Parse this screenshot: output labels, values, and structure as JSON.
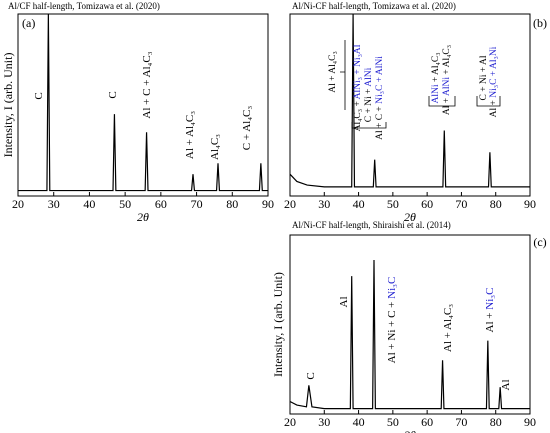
{
  "chart_data": [
    {
      "type": "line",
      "title": "Al/CF half-length,  Tomizawa et al. (2020)",
      "panel": "(a)",
      "xlabel": "2θ",
      "ylabel": "Intensity, I (arb. Unit)",
      "color": "#000000",
      "x": [
        20,
        28.1,
        28.5,
        28.9,
        46.6,
        47,
        47.4,
        55.6,
        56,
        56.4,
        68.6,
        69,
        69.4,
        75.6,
        76,
        76.4,
        87.6,
        88,
        88.4,
        90
      ],
      "values": [
        0.03,
        0.03,
        1.0,
        0.03,
        0.03,
        0.45,
        0.03,
        0.03,
        0.35,
        0.03,
        0.03,
        0.12,
        0.03,
        0.03,
        0.18,
        0.03,
        0.03,
        0.18,
        0.03,
        0.03
      ],
      "xlim": [
        20,
        90
      ],
      "ylim": [
        0,
        1.0
      ],
      "xticks": [
        20,
        30,
        40,
        50,
        60,
        70,
        80,
        90
      ],
      "annotations": [
        [
          {
            "text": "C"
          }
        ],
        [
          {
            "text": "C"
          }
        ],
        [
          {
            "text": "Al + C + Al₄C₃"
          }
        ],
        [
          {
            "text": "Al + Al₄C₃"
          }
        ],
        [
          {
            "text": "Al₄C₃"
          }
        ],
        [
          {
            "text": "C + Al₄C₃"
          }
        ]
      ]
    },
    {
      "type": "line",
      "title": "Al/Ni-CF half-length,  Tomizawa et al. (2020)",
      "panel": "(b)",
      "xlabel": "2θ",
      "color": "#000000",
      "x": [
        20,
        22,
        25,
        30,
        38.0,
        38.4,
        38.8,
        44.3,
        44.7,
        45.1,
        64.6,
        65,
        65.4,
        77.9,
        78.3,
        78.7,
        90
      ],
      "values": [
        0.12,
        0.08,
        0.06,
        0.05,
        0.05,
        1.0,
        0.05,
        0.05,
        0.2,
        0.05,
        0.05,
        0.36,
        0.05,
        0.05,
        0.24,
        0.05,
        0.05
      ],
      "xlim": [
        20,
        90
      ],
      "ylim": [
        0,
        1.0
      ],
      "xticks": [
        20,
        30,
        40,
        50,
        60,
        70,
        80,
        90
      ],
      "annotations": [
        [
          {
            "text": "Al + Al₄C₃"
          }
        ],
        [
          {
            "text": "Al₄C₃ + "
          },
          {
            "text": "AlNi₃ + Ni₃Al",
            "color": "#1f1fd0"
          }
        ],
        [
          {
            "text": "C + Ni + "
          },
          {
            "text": "AlNi",
            "color": "#1f1fd0"
          }
        ],
        [
          {
            "text": "Al + C + "
          },
          {
            "text": "Ni₃C + AlNi",
            "color": "#1f1fd0"
          }
        ],
        [
          {
            "text": "AlNi",
            "color": "#1f1fd0"
          },
          {
            "text": " + Al₄C₃"
          }
        ],
        [
          {
            "text": "Al + "
          },
          {
            "text": "AlNi",
            "color": "#1f1fd0"
          },
          {
            "text": " + Al₄C₃"
          }
        ],
        [
          {
            "text": "C + Ni + Al"
          }
        ],
        [
          {
            "text": "Al + "
          },
          {
            "text": "Ni₃C + Al₃Ni",
            "color": "#1f1fd0"
          }
        ]
      ]
    },
    {
      "type": "line",
      "title": "Al/Ni-CF half-length,  Shiraishi et al. (2014)",
      "panel": "(c)",
      "xlabel": "2θ",
      "ylabel": "Intensity, I (arb. Unit)",
      "color": "#000000",
      "x": [
        20,
        22,
        24.8,
        25.5,
        26.4,
        30,
        37.6,
        38,
        38.4,
        44.1,
        44.5,
        44.9,
        64.1,
        64.5,
        64.9,
        77.3,
        77.7,
        78.1,
        80.9,
        81.3,
        81.7,
        90
      ],
      "values": [
        0.07,
        0.05,
        0.04,
        0.16,
        0.04,
        0.03,
        0.03,
        0.77,
        0.03,
        0.03,
        0.86,
        0.03,
        0.03,
        0.3,
        0.03,
        0.03,
        0.41,
        0.03,
        0.03,
        0.15,
        0.03,
        0.03
      ],
      "xlim": [
        20,
        90
      ],
      "ylim": [
        0,
        1.0
      ],
      "xticks": [
        20,
        30,
        40,
        50,
        60,
        70,
        80,
        90
      ],
      "annotations": [
        [
          {
            "text": "C"
          }
        ],
        [
          {
            "text": "Al"
          }
        ],
        [
          {
            "text": "Al + Ni + C + "
          },
          {
            "text": "Ni₃C",
            "color": "#1f1fd0"
          }
        ],
        [
          {
            "text": "Al + Al₄C₃"
          }
        ],
        [
          {
            "text": "Al + "
          },
          {
            "text": "Ni₃C",
            "color": "#1f1fd0"
          }
        ],
        [
          {
            "text": "Al"
          }
        ]
      ]
    }
  ]
}
